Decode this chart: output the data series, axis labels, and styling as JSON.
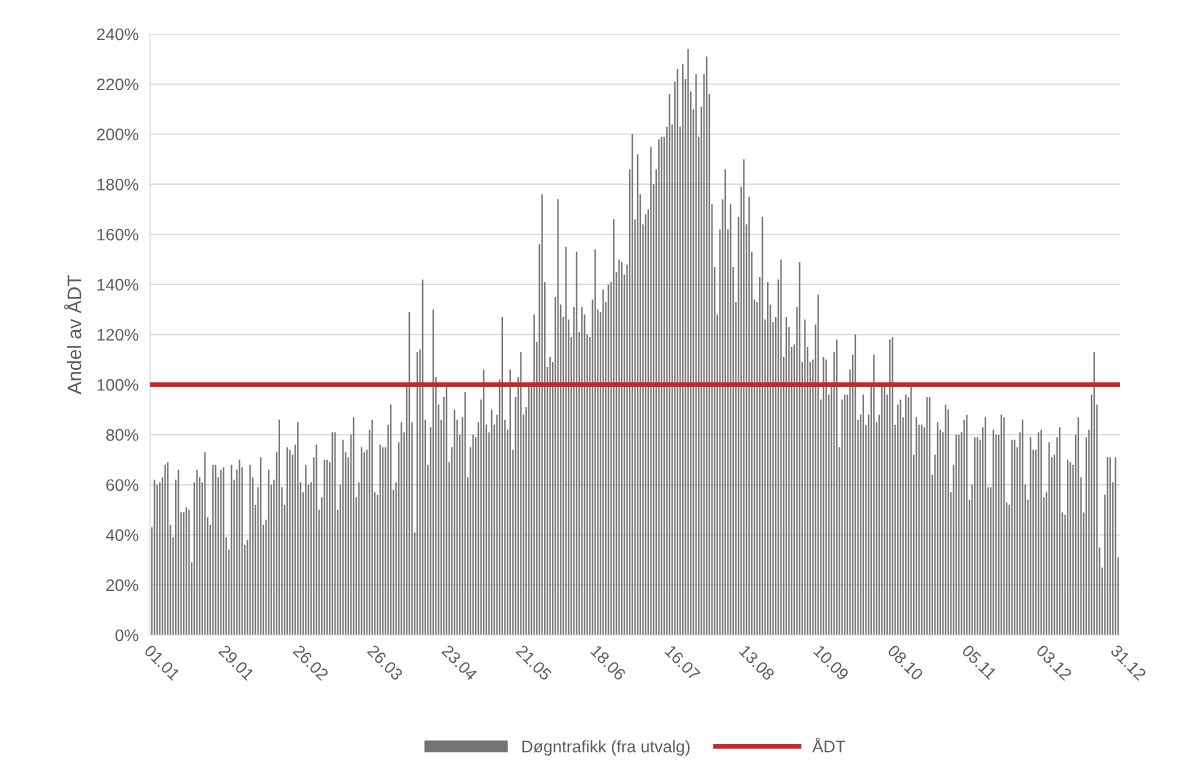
{
  "chart_data": {
    "type": "bar",
    "ylabel": "Andel av ÅDT",
    "categories": [
      "01.01",
      null,
      null,
      null,
      null,
      null,
      null,
      null,
      null,
      null,
      null,
      null,
      null,
      null,
      null,
      null,
      null,
      null,
      null,
      null,
      null,
      null,
      null,
      null,
      null,
      null,
      null,
      null,
      "29.01",
      null,
      null,
      null,
      null,
      null,
      null,
      null,
      null,
      null,
      null,
      null,
      null,
      null,
      null,
      null,
      null,
      null,
      null,
      null,
      null,
      null,
      null,
      null,
      null,
      null,
      null,
      null,
      "26.02",
      null,
      null,
      null,
      null,
      null,
      null,
      null,
      null,
      null,
      null,
      null,
      null,
      null,
      null,
      null,
      null,
      null,
      null,
      null,
      null,
      null,
      null,
      null,
      null,
      null,
      null,
      null,
      "26.03",
      null,
      null,
      null,
      null,
      null,
      null,
      null,
      null,
      null,
      null,
      null,
      null,
      null,
      null,
      null,
      null,
      null,
      null,
      null,
      null,
      null,
      null,
      null,
      null,
      null,
      null,
      null,
      "23.04",
      null,
      null,
      null,
      null,
      null,
      null,
      null,
      null,
      null,
      null,
      null,
      null,
      null,
      null,
      null,
      null,
      null,
      null,
      null,
      null,
      null,
      null,
      null,
      null,
      null,
      null,
      null,
      "21.05",
      null,
      null,
      null,
      null,
      null,
      null,
      null,
      null,
      null,
      null,
      null,
      null,
      null,
      null,
      null,
      null,
      null,
      null,
      null,
      null,
      null,
      null,
      null,
      null,
      null,
      null,
      null,
      "18.06",
      null,
      null,
      null,
      null,
      null,
      null,
      null,
      null,
      null,
      null,
      null,
      null,
      null,
      null,
      null,
      null,
      null,
      null,
      null,
      null,
      null,
      null,
      null,
      null,
      null,
      null,
      null,
      "16.07",
      null,
      null,
      null,
      null,
      null,
      null,
      null,
      null,
      null,
      null,
      null,
      null,
      null,
      null,
      null,
      null,
      null,
      null,
      null,
      null,
      null,
      null,
      null,
      null,
      null,
      null,
      null,
      "13.08",
      null,
      null,
      null,
      null,
      null,
      null,
      null,
      null,
      null,
      null,
      null,
      null,
      null,
      null,
      null,
      null,
      null,
      null,
      null,
      null,
      null,
      null,
      null,
      null,
      null,
      null,
      null,
      "10.09",
      null,
      null,
      null,
      null,
      null,
      null,
      null,
      null,
      null,
      null,
      null,
      null,
      null,
      null,
      null,
      null,
      null,
      null,
      null,
      null,
      null,
      null,
      null,
      null,
      null,
      null,
      null,
      "08.10",
      null,
      null,
      null,
      null,
      null,
      null,
      null,
      null,
      null,
      null,
      null,
      null,
      null,
      null,
      null,
      null,
      null,
      null,
      null,
      null,
      null,
      null,
      null,
      null,
      null,
      null,
      null,
      "05.11",
      null,
      null,
      null,
      null,
      null,
      null,
      null,
      null,
      null,
      null,
      null,
      null,
      null,
      null,
      null,
      null,
      null,
      null,
      null,
      null,
      null,
      null,
      null,
      null,
      null,
      null,
      null,
      "03.12",
      null,
      null,
      null,
      null,
      null,
      null,
      null,
      null,
      null,
      null,
      null,
      null,
      null,
      null,
      null,
      null,
      null,
      null,
      null,
      null,
      null,
      null,
      null,
      null,
      null,
      null,
      null,
      "31.12"
    ],
    "series": [
      {
        "name": "Døgntrafikk (fra utvalg)",
        "color": "#737373",
        "values": [
          43,
          62,
          60,
          61,
          63,
          68,
          69,
          44,
          39,
          62,
          66,
          49,
          49,
          51,
          50,
          29,
          61,
          66,
          63,
          61,
          73,
          47,
          44,
          68,
          68,
          63,
          66,
          67,
          39,
          34,
          68,
          62,
          66,
          70,
          67,
          36,
          38,
          68,
          63,
          52,
          59,
          71,
          44,
          46,
          66,
          60,
          62,
          73,
          86,
          59,
          52,
          75,
          74,
          72,
          76,
          85,
          61,
          57,
          68,
          60,
          61,
          71,
          76,
          50,
          55,
          70,
          70,
          69,
          81,
          81,
          50,
          60,
          78,
          73,
          71,
          80,
          87,
          55,
          61,
          75,
          73,
          74,
          82,
          86,
          57,
          56,
          76,
          75,
          75,
          84,
          92,
          58,
          61,
          77,
          85,
          81,
          99,
          129,
          85,
          41,
          113,
          114,
          142,
          86,
          68,
          83,
          130,
          103,
          92,
          86,
          95,
          99,
          69,
          75,
          90,
          86,
          80,
          87,
          97,
          63,
          75,
          80,
          79,
          85,
          94,
          106,
          84,
          81,
          90,
          84,
          88,
          102,
          127,
          86,
          82,
          106,
          74,
          95,
          103,
          113,
          88,
          91,
          99,
          101,
          128,
          117,
          156,
          176,
          141,
          107,
          111,
          109,
          135,
          174,
          132,
          127,
          155,
          126,
          119,
          131,
          153,
          121,
          131,
          128,
          120,
          119,
          134,
          154,
          130,
          129,
          138,
          133,
          140,
          141,
          166,
          145,
          150,
          149,
          144,
          148,
          186,
          200,
          166,
          192,
          176,
          164,
          168,
          170,
          195,
          180,
          186,
          198,
          199,
          199,
          203,
          216,
          204,
          221,
          226,
          203,
          228,
          222,
          234,
          217,
          210,
          224,
          199,
          211,
          224,
          231,
          216,
          172,
          147,
          128,
          162,
          174,
          186,
          162,
          172,
          147,
          133,
          167,
          179,
          190,
          164,
          175,
          153,
          134,
          133,
          143,
          167,
          126,
          141,
          132,
          125,
          127,
          142,
          150,
          111,
          127,
          123,
          115,
          116,
          131,
          149,
          109,
          126,
          115,
          109,
          110,
          124,
          136,
          94,
          111,
          110,
          96,
          100,
          113,
          118,
          75,
          94,
          96,
          96,
          106,
          112,
          120,
          86,
          88,
          96,
          84,
          88,
          99,
          112,
          85,
          88,
          99,
          99,
          96,
          118,
          119,
          84,
          92,
          94,
          87,
          96,
          95,
          99,
          72,
          87,
          84,
          84,
          83,
          95,
          95,
          64,
          72,
          85,
          82,
          81,
          92,
          90,
          57,
          68,
          80,
          80,
          81,
          86,
          88,
          54,
          60,
          79,
          79,
          78,
          83,
          87,
          59,
          59,
          82,
          80,
          80,
          88,
          87,
          53,
          52,
          78,
          78,
          75,
          81,
          86,
          60,
          54,
          79,
          74,
          74,
          81,
          82,
          55,
          57,
          77,
          71,
          72,
          79,
          83,
          49,
          48,
          70,
          69,
          68,
          80,
          87,
          63,
          49,
          79,
          82,
          96,
          113,
          92,
          35,
          27,
          56,
          71,
          71,
          61,
          71,
          31
        ]
      }
    ],
    "ref_lines": [
      {
        "axis": "y",
        "value": 100,
        "label": "ÅDT",
        "color": "#b5302a",
        "line_style": "solid"
      }
    ],
    "ylim": [
      0,
      240
    ],
    "yticks": [
      {
        "value": 0,
        "label": "0%"
      },
      {
        "value": 20,
        "label": "20%"
      },
      {
        "value": 40,
        "label": "40%"
      },
      {
        "value": 60,
        "label": "60%"
      },
      {
        "value": 80,
        "label": "80%"
      },
      {
        "value": 100,
        "label": "100%"
      },
      {
        "value": 120,
        "label": "120%"
      },
      {
        "value": 140,
        "label": "140%"
      },
      {
        "value": 160,
        "label": "160%"
      },
      {
        "value": 180,
        "label": "180%"
      },
      {
        "value": 200,
        "label": "200%"
      },
      {
        "value": 220,
        "label": "220%"
      },
      {
        "value": 240,
        "label": "240%"
      }
    ],
    "grid": "y",
    "legend": "bottom"
  }
}
